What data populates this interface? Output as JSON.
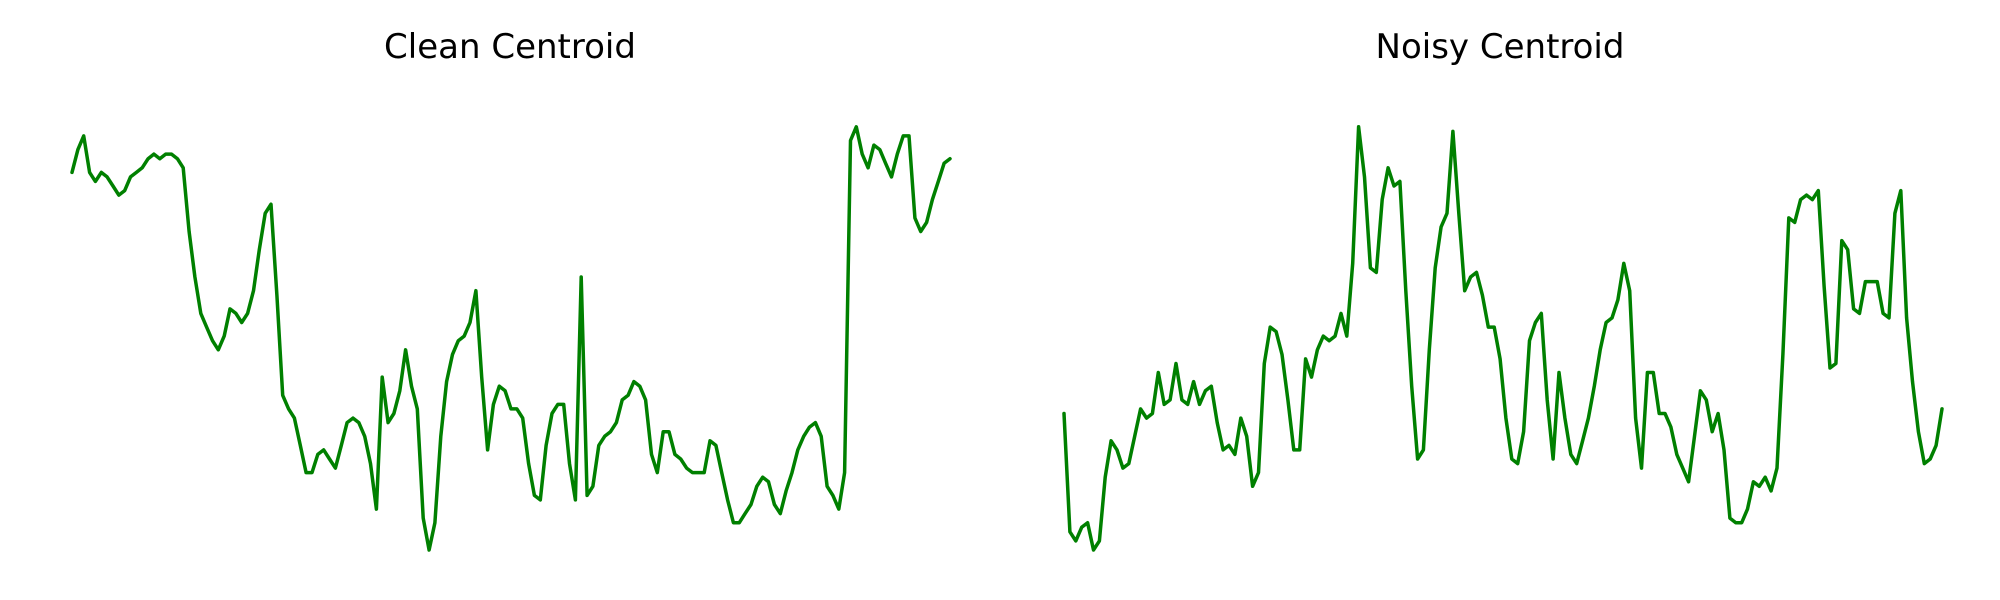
{
  "colors": {
    "line": "#008000",
    "background": "#ffffff"
  },
  "chart_data": [
    {
      "type": "line",
      "title": "Clean Centroid",
      "xlabel": "",
      "ylabel": "",
      "axes_visible": false,
      "grid": false,
      "ylim": [
        0,
        1
      ],
      "series": [
        {
          "values": [
            0.83,
            0.88,
            0.91,
            0.83,
            0.81,
            0.83,
            0.82,
            0.8,
            0.78,
            0.79,
            0.82,
            0.83,
            0.84,
            0.86,
            0.87,
            0.86,
            0.87,
            0.87,
            0.86,
            0.84,
            0.7,
            0.6,
            0.52,
            0.49,
            0.46,
            0.44,
            0.47,
            0.53,
            0.52,
            0.5,
            0.52,
            0.57,
            0.66,
            0.74,
            0.76,
            0.56,
            0.34,
            0.31,
            0.29,
            0.23,
            0.17,
            0.17,
            0.21,
            0.22,
            0.2,
            0.18,
            0.23,
            0.28,
            0.29,
            0.28,
            0.25,
            0.19,
            0.09,
            0.38,
            0.28,
            0.3,
            0.35,
            0.44,
            0.36,
            0.31,
            0.07,
            0.0,
            0.06,
            0.25,
            0.37,
            0.43,
            0.46,
            0.47,
            0.5,
            0.57,
            0.38,
            0.22,
            0.32,
            0.36,
            0.35,
            0.31,
            0.31,
            0.29,
            0.19,
            0.12,
            0.11,
            0.23,
            0.3,
            0.32,
            0.32,
            0.19,
            0.11,
            0.6,
            0.12,
            0.14,
            0.23,
            0.25,
            0.26,
            0.28,
            0.33,
            0.34,
            0.37,
            0.36,
            0.33,
            0.21,
            0.17,
            0.26,
            0.26,
            0.21,
            0.2,
            0.18,
            0.17,
            0.17,
            0.17,
            0.24,
            0.23,
            0.17,
            0.11,
            0.06,
            0.06,
            0.08,
            0.1,
            0.14,
            0.16,
            0.15,
            0.1,
            0.08,
            0.13,
            0.17,
            0.22,
            0.25,
            0.27,
            0.28,
            0.25,
            0.14,
            0.12,
            0.09,
            0.17,
            0.9,
            0.93,
            0.87,
            0.84,
            0.89,
            0.88,
            0.85,
            0.82,
            0.87,
            0.91,
            0.91,
            0.73,
            0.7,
            0.72,
            0.77,
            0.81,
            0.85,
            0.86
          ]
        }
      ]
    },
    {
      "type": "line",
      "title": "Noisy Centroid",
      "xlabel": "",
      "ylabel": "",
      "axes_visible": false,
      "grid": false,
      "ylim": [
        0,
        1
      ],
      "series": [
        {
          "values": [
            0.3,
            0.04,
            0.02,
            0.05,
            0.06,
            0.0,
            0.02,
            0.16,
            0.24,
            0.22,
            0.18,
            0.19,
            0.25,
            0.31,
            0.29,
            0.3,
            0.39,
            0.32,
            0.33,
            0.41,
            0.33,
            0.32,
            0.37,
            0.32,
            0.35,
            0.36,
            0.28,
            0.22,
            0.23,
            0.21,
            0.29,
            0.25,
            0.14,
            0.17,
            0.41,
            0.49,
            0.48,
            0.43,
            0.33,
            0.22,
            0.22,
            0.42,
            0.38,
            0.44,
            0.47,
            0.46,
            0.47,
            0.52,
            0.47,
            0.63,
            0.93,
            0.82,
            0.62,
            0.61,
            0.77,
            0.84,
            0.8,
            0.81,
            0.57,
            0.36,
            0.2,
            0.22,
            0.44,
            0.62,
            0.71,
            0.74,
            0.92,
            0.74,
            0.57,
            0.6,
            0.61,
            0.56,
            0.49,
            0.49,
            0.42,
            0.29,
            0.2,
            0.19,
            0.26,
            0.46,
            0.5,
            0.52,
            0.33,
            0.2,
            0.39,
            0.29,
            0.21,
            0.19,
            0.24,
            0.29,
            0.36,
            0.44,
            0.5,
            0.51,
            0.55,
            0.63,
            0.57,
            0.29,
            0.18,
            0.39,
            0.39,
            0.3,
            0.3,
            0.27,
            0.21,
            0.18,
            0.15,
            0.25,
            0.35,
            0.33,
            0.26,
            0.3,
            0.22,
            0.07,
            0.06,
            0.06,
            0.09,
            0.15,
            0.14,
            0.16,
            0.13,
            0.18,
            0.43,
            0.73,
            0.72,
            0.77,
            0.78,
            0.77,
            0.79,
            0.58,
            0.4,
            0.41,
            0.68,
            0.66,
            0.53,
            0.52,
            0.59,
            0.59,
            0.59,
            0.52,
            0.51,
            0.74,
            0.79,
            0.51,
            0.37,
            0.26,
            0.19,
            0.2,
            0.23,
            0.31
          ]
        }
      ]
    }
  ]
}
